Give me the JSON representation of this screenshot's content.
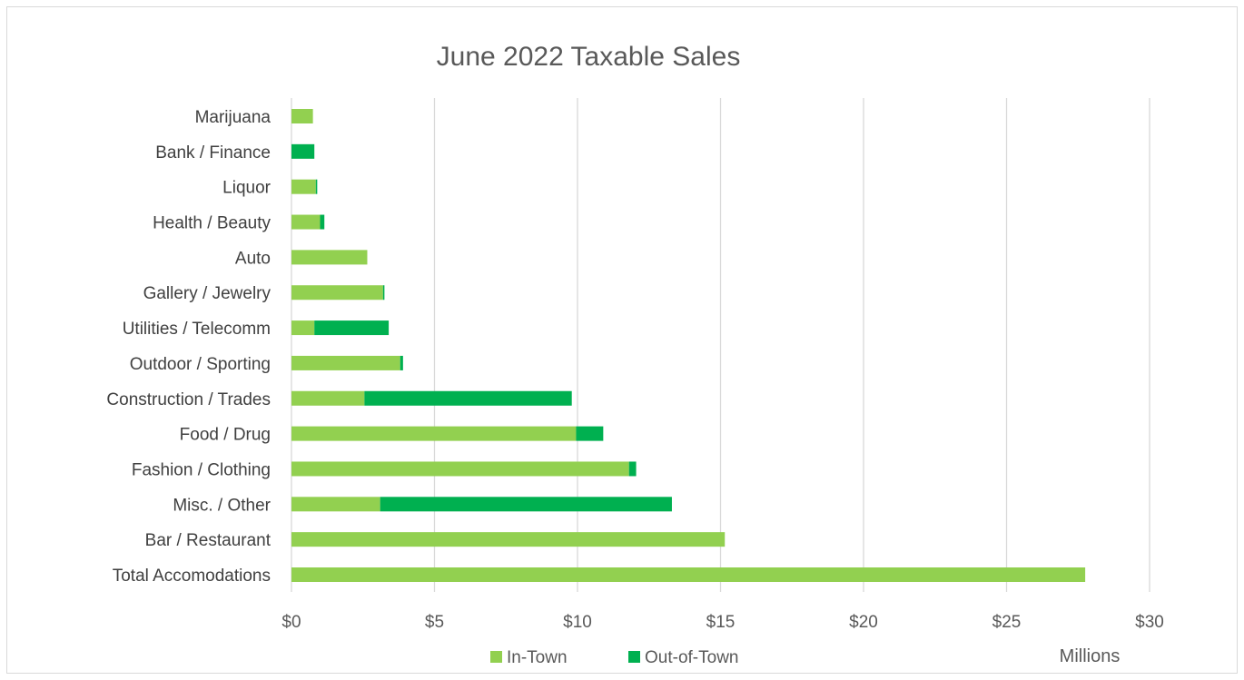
{
  "chart_data": {
    "type": "bar",
    "orientation": "horizontal",
    "stacked": true,
    "title": "June 2022 Taxable Sales",
    "xlabel": "",
    "ylabel": "",
    "units_label": "Millions",
    "xlim": [
      0,
      30
    ],
    "x_ticks": [
      0,
      5,
      10,
      15,
      20,
      25,
      30
    ],
    "x_tick_labels": [
      "$0",
      "$5",
      "$10",
      "$15",
      "$20",
      "$25",
      "$30"
    ],
    "grid": "vertical",
    "legend_position": "bottom",
    "categories": [
      "Marijuana",
      "Bank / Finance",
      "Liquor",
      "Health / Beauty",
      "Auto",
      "Gallery / Jewelry",
      "Utilities / Telecomm",
      "Outdoor / Sporting",
      "Construction / Trades",
      "Food / Drug",
      "Fashion / Clothing",
      "Misc. / Other",
      "Bar / Restaurant",
      "Total Accomodations"
    ],
    "series": [
      {
        "name": "In-Town",
        "color": "#92d050",
        "values": [
          0.75,
          0.0,
          0.85,
          1.0,
          2.65,
          3.2,
          0.8,
          3.8,
          2.55,
          9.95,
          11.8,
          3.1,
          15.15,
          27.75
        ]
      },
      {
        "name": "Out-of-Town",
        "color": "#00b050",
        "values": [
          0.0,
          0.8,
          0.05,
          0.15,
          0.0,
          0.05,
          2.6,
          0.1,
          7.25,
          0.95,
          0.25,
          10.2,
          0.0,
          0.0
        ]
      }
    ]
  }
}
